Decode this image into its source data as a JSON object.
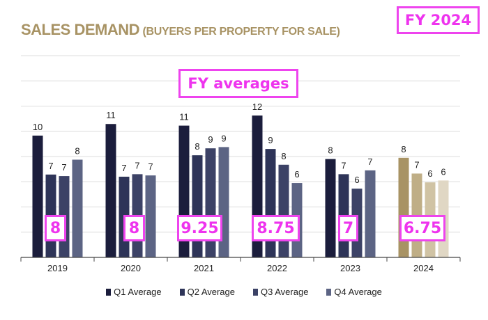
{
  "title": {
    "main": "SALES DEMAND",
    "sub": "(BUYERS PER PROPERTY FOR SALE)"
  },
  "annotations": {
    "fy_badge": "FY 2024",
    "fy_averages_label": "FY averages",
    "fy_averages": [
      "8",
      "8",
      "9.25",
      "8.75",
      "7",
      "6.75"
    ]
  },
  "colors": {
    "title": "#a89364",
    "annotation": "#ee33ee",
    "series": [
      "#1b1d3c",
      "#2e3458",
      "#3c4266",
      "#5c6484"
    ],
    "series_2024": [
      "#a89364",
      "#bfae86",
      "#d0c3a4",
      "#e0d7c4"
    ]
  },
  "chart_data": {
    "type": "bar",
    "categories": [
      "2019",
      "2020",
      "2021",
      "2022",
      "2023",
      "2024"
    ],
    "series": [
      {
        "name": "Q1 Average",
        "values": [
          10,
          11,
          11,
          12,
          8,
          8
        ]
      },
      {
        "name": "Q2 Average",
        "values": [
          7,
          7,
          8,
          9,
          7,
          7
        ]
      },
      {
        "name": "Q3 Average",
        "values": [
          7,
          7,
          9,
          8,
          6,
          6
        ]
      },
      {
        "name": "Q4 Average",
        "values": [
          8,
          7,
          9,
          6,
          7,
          6
        ]
      }
    ],
    "heights": [
      [
        9.66,
        6.57,
        6.45,
        7.75
      ],
      [
        10.58,
        6.4,
        6.6,
        6.5
      ],
      [
        10.45,
        8.1,
        8.65,
        8.75
      ],
      [
        11.25,
        8.6,
        7.35,
        5.9
      ],
      [
        7.8,
        6.6,
        5.45,
        6.9
      ],
      [
        7.9,
        6.65,
        5.95,
        6.1
      ]
    ],
    "ylim": [
      0,
      16
    ],
    "grid": true,
    "legend": "bottom",
    "data_labels": true
  }
}
